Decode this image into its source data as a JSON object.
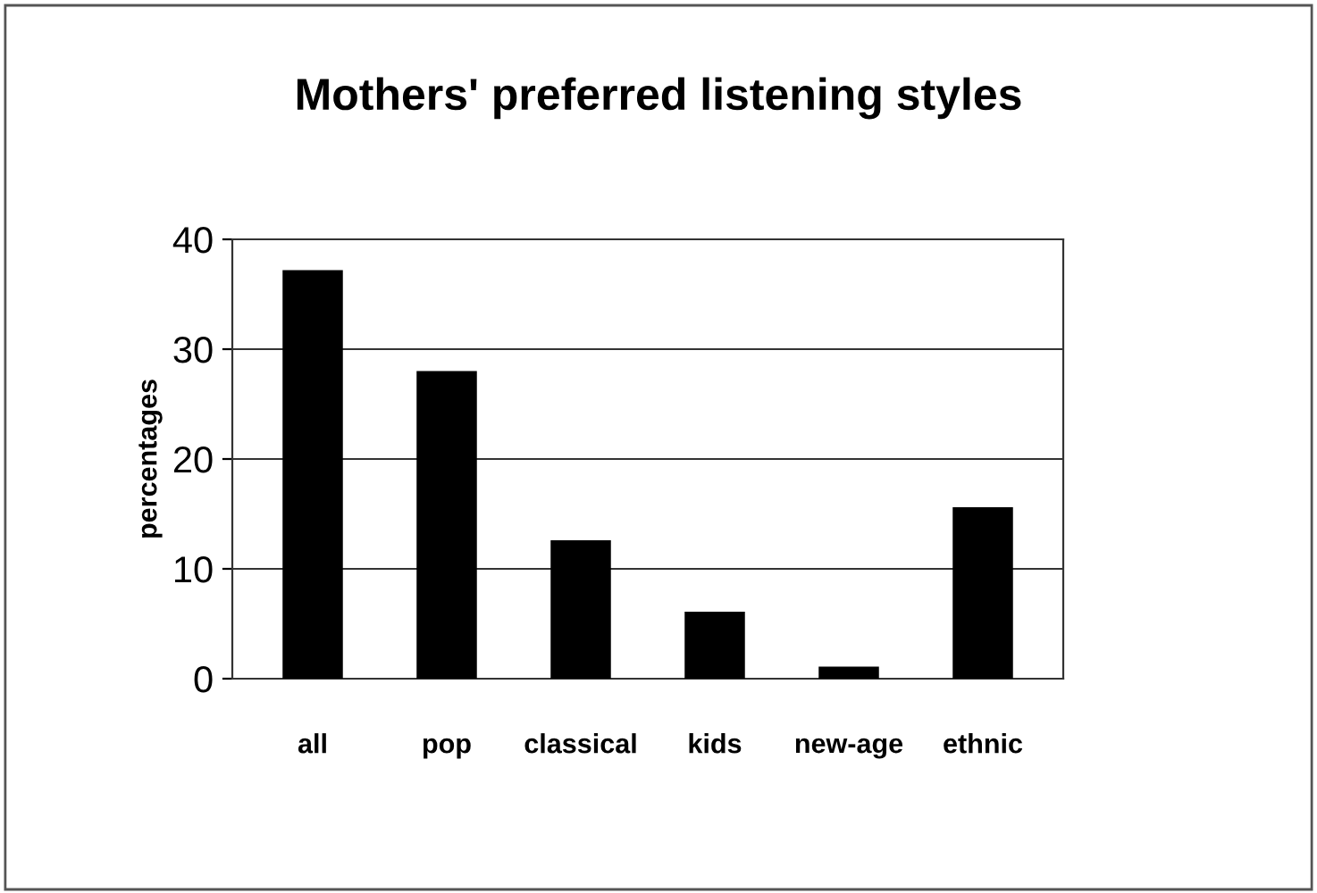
{
  "chart_data": {
    "type": "bar",
    "title": "Mothers' preferred listening styles",
    "ylabel": "percentages",
    "categories": [
      "all",
      "pop",
      "classical",
      "kids",
      "new-age",
      "ethnic"
    ],
    "values": [
      37.2,
      28.0,
      12.6,
      6.1,
      1.1,
      15.6
    ],
    "color": "#000000",
    "ylim": [
      0,
      40
    ],
    "yticks": [
      0,
      10,
      20,
      30,
      40
    ],
    "grid": "y"
  }
}
